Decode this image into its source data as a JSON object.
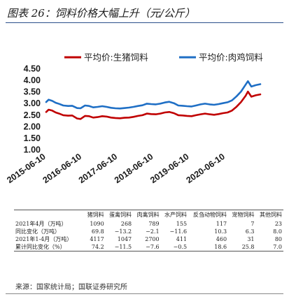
{
  "title": "图表 26：饲料价格大幅上升（元/公斤）",
  "chart_data": {
    "type": "line",
    "legend_position": "top",
    "ylim": [
      1.0,
      4.5
    ],
    "yticks": [
      "1.00",
      "1.50",
      "2.00",
      "2.50",
      "3.00",
      "3.50",
      "4.00",
      "4.50"
    ],
    "xticks": [
      "2015-06-10",
      "2016-06-10",
      "2017-06-10",
      "2018-06-10",
      "2019-06-10",
      "2020-06-10"
    ],
    "x_start": "2015-06-10",
    "x_end": "2021-05-31",
    "colors": {
      "pig_feed": "#c00000",
      "chicken_feed": "#1f6fc5"
    },
    "series": [
      {
        "key": "pig_feed",
        "name": "平均价:生猪饲料",
        "points": [
          [
            "2015-06-10",
            2.62
          ],
          [
            "2015-07-05",
            2.72
          ],
          [
            "2015-08-10",
            2.68
          ],
          [
            "2015-09-15",
            2.6
          ],
          [
            "2015-10-20",
            2.55
          ],
          [
            "2015-12-01",
            2.48
          ],
          [
            "2016-01-20",
            2.46
          ],
          [
            "2016-03-01",
            2.47
          ],
          [
            "2016-04-20",
            2.34
          ],
          [
            "2016-05-25",
            2.32
          ],
          [
            "2016-07-10",
            2.45
          ],
          [
            "2016-08-20",
            2.44
          ],
          [
            "2016-10-01",
            2.38
          ],
          [
            "2016-11-15",
            2.4
          ],
          [
            "2017-01-01",
            2.44
          ],
          [
            "2017-02-15",
            2.42
          ],
          [
            "2017-04-01",
            2.38
          ],
          [
            "2017-05-15",
            2.36
          ],
          [
            "2017-07-01",
            2.35
          ],
          [
            "2017-08-15",
            2.37
          ],
          [
            "2017-10-01",
            2.38
          ],
          [
            "2017-11-15",
            2.41
          ],
          [
            "2018-01-01",
            2.45
          ],
          [
            "2018-02-15",
            2.48
          ],
          [
            "2018-04-01",
            2.55
          ],
          [
            "2018-05-15",
            2.53
          ],
          [
            "2018-07-01",
            2.52
          ],
          [
            "2018-08-15",
            2.55
          ],
          [
            "2018-10-01",
            2.6
          ],
          [
            "2018-11-15",
            2.62
          ],
          [
            "2019-01-01",
            2.57
          ],
          [
            "2019-02-15",
            2.48
          ],
          [
            "2019-04-01",
            2.47
          ],
          [
            "2019-05-15",
            2.45
          ],
          [
            "2019-07-01",
            2.44
          ],
          [
            "2019-08-15",
            2.48
          ],
          [
            "2019-10-01",
            2.52
          ],
          [
            "2019-11-15",
            2.55
          ],
          [
            "2020-01-01",
            2.52
          ],
          [
            "2020-02-15",
            2.5
          ],
          [
            "2020-04-01",
            2.53
          ],
          [
            "2020-05-15",
            2.57
          ],
          [
            "2020-07-01",
            2.6
          ],
          [
            "2020-08-15",
            2.68
          ],
          [
            "2020-10-01",
            2.85
          ],
          [
            "2020-11-15",
            3.05
          ],
          [
            "2021-01-01",
            3.32
          ],
          [
            "2021-01-25",
            3.5
          ],
          [
            "2021-03-01",
            3.28
          ],
          [
            "2021-04-15",
            3.34
          ],
          [
            "2021-05-31",
            3.38
          ]
        ]
      },
      {
        "key": "chicken_feed",
        "name": "平均价:肉鸡饲料",
        "points": [
          [
            "2015-06-10",
            3.05
          ],
          [
            "2015-07-05",
            3.15
          ],
          [
            "2015-08-10",
            3.1
          ],
          [
            "2015-09-15",
            3.02
          ],
          [
            "2015-10-20",
            2.97
          ],
          [
            "2015-12-01",
            2.9
          ],
          [
            "2016-01-20",
            2.88
          ],
          [
            "2016-03-01",
            2.89
          ],
          [
            "2016-04-20",
            2.79
          ],
          [
            "2016-05-25",
            2.78
          ],
          [
            "2016-07-10",
            2.9
          ],
          [
            "2016-08-20",
            2.88
          ],
          [
            "2016-10-01",
            2.82
          ],
          [
            "2016-11-15",
            2.84
          ],
          [
            "2017-01-01",
            2.87
          ],
          [
            "2017-02-15",
            2.84
          ],
          [
            "2017-04-01",
            2.8
          ],
          [
            "2017-05-15",
            2.78
          ],
          [
            "2017-07-01",
            2.77
          ],
          [
            "2017-08-15",
            2.79
          ],
          [
            "2017-10-01",
            2.81
          ],
          [
            "2017-11-15",
            2.84
          ],
          [
            "2018-01-01",
            2.88
          ],
          [
            "2018-02-15",
            2.91
          ],
          [
            "2018-04-01",
            2.98
          ],
          [
            "2018-05-15",
            2.96
          ],
          [
            "2018-07-01",
            2.95
          ],
          [
            "2018-08-15",
            2.98
          ],
          [
            "2018-10-01",
            3.03
          ],
          [
            "2018-11-15",
            3.06
          ],
          [
            "2019-01-01",
            3.0
          ],
          [
            "2019-02-15",
            2.9
          ],
          [
            "2019-04-01",
            2.89
          ],
          [
            "2019-05-15",
            2.87
          ],
          [
            "2019-07-01",
            2.86
          ],
          [
            "2019-08-15",
            2.9
          ],
          [
            "2019-10-01",
            2.95
          ],
          [
            "2019-11-15",
            2.98
          ],
          [
            "2020-01-01",
            2.95
          ],
          [
            "2020-02-15",
            2.93
          ],
          [
            "2020-04-01",
            2.96
          ],
          [
            "2020-05-15",
            3.0
          ],
          [
            "2020-07-01",
            3.04
          ],
          [
            "2020-08-15",
            3.12
          ],
          [
            "2020-10-01",
            3.3
          ],
          [
            "2020-11-15",
            3.5
          ],
          [
            "2021-01-01",
            3.8
          ],
          [
            "2021-01-25",
            3.95
          ],
          [
            "2021-03-01",
            3.72
          ],
          [
            "2021-04-15",
            3.78
          ],
          [
            "2021-05-31",
            3.82
          ]
        ]
      }
    ]
  },
  "table": {
    "headers": [
      "猪饲料",
      "蛋禽饲料",
      "肉禽饲料",
      "水产饲料",
      "反刍动物饲料",
      "宠物饲料",
      "其他饲料"
    ],
    "rows": [
      {
        "label": "2021年4月（万吨）",
        "values": [
          "1090",
          "268",
          "789",
          "155",
          "117",
          "7",
          "23"
        ]
      },
      {
        "label": "同比变化（万吨）",
        "values": [
          "69.8",
          "−13.2",
          "−2.1",
          "−11.6",
          "10.3",
          "6.3",
          "8.0"
        ]
      },
      {
        "label": "2021年1-4月（万吨）",
        "values": [
          "4117",
          "1047",
          "2700",
          "411",
          "460",
          "31",
          "80"
        ]
      },
      {
        "label": "累计同比变化（%）",
        "values": [
          "74.2",
          "−11.5",
          "−7.6",
          "−0.5",
          "18.6",
          "25.8",
          "7.0"
        ]
      }
    ]
  },
  "source": "来源：国家统计局；国联证券研究所"
}
